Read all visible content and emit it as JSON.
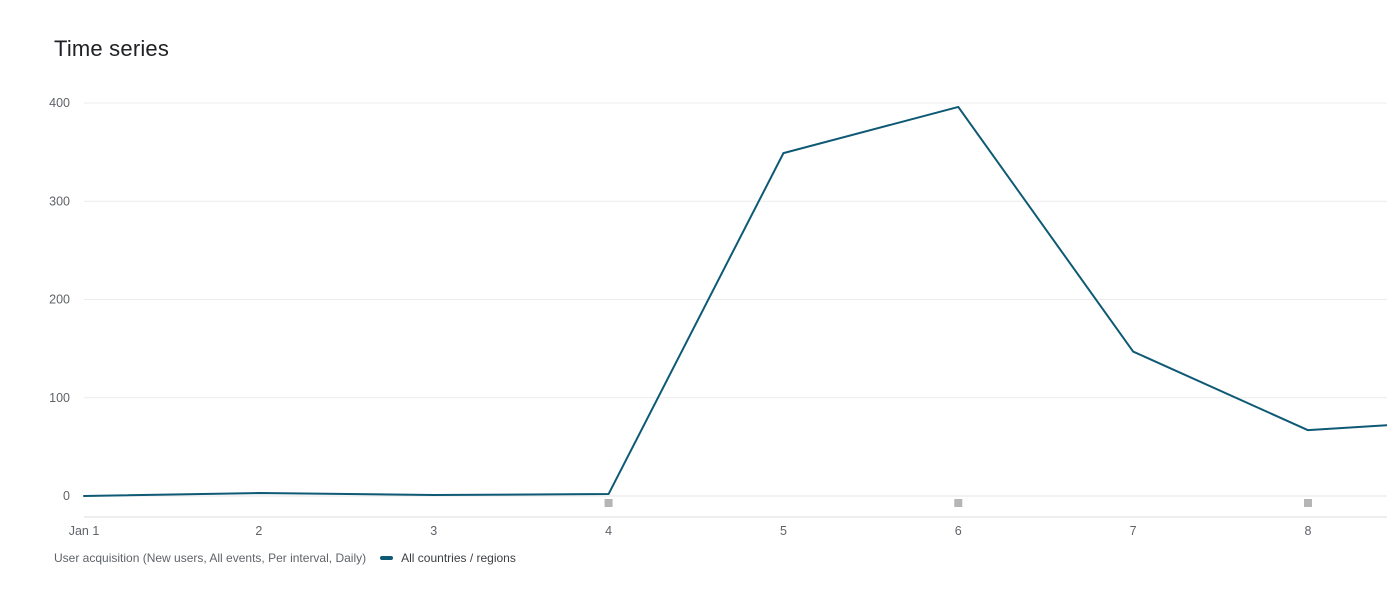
{
  "page": {
    "title": "Time series"
  },
  "footer": {
    "caption": "User acquisition (New users, All events, Per interval, Daily)",
    "legend": [
      {
        "label": "All countries / regions",
        "color": "#0e5a75"
      }
    ]
  },
  "chart_data": {
    "type": "line",
    "title": "Time series",
    "x_tick_labels": [
      "Jan 1",
      "2",
      "3",
      "4",
      "5",
      "6",
      "7",
      "8"
    ],
    "yticks": [
      0,
      100,
      200,
      300,
      400
    ],
    "ylim": [
      0,
      400
    ],
    "grid": true,
    "legend_position": "bottom",
    "series": [
      {
        "name": "All countries / regions",
        "color": "#0e5a75",
        "x": [
          0,
          1,
          2,
          3,
          4,
          5,
          6,
          7,
          7.45
        ],
        "values": [
          0,
          3,
          1,
          2,
          349,
          396,
          147,
          67,
          72
        ]
      }
    ],
    "annotation_markers": {
      "x": [
        3,
        5,
        7
      ],
      "color": "#b5b5b5"
    }
  }
}
